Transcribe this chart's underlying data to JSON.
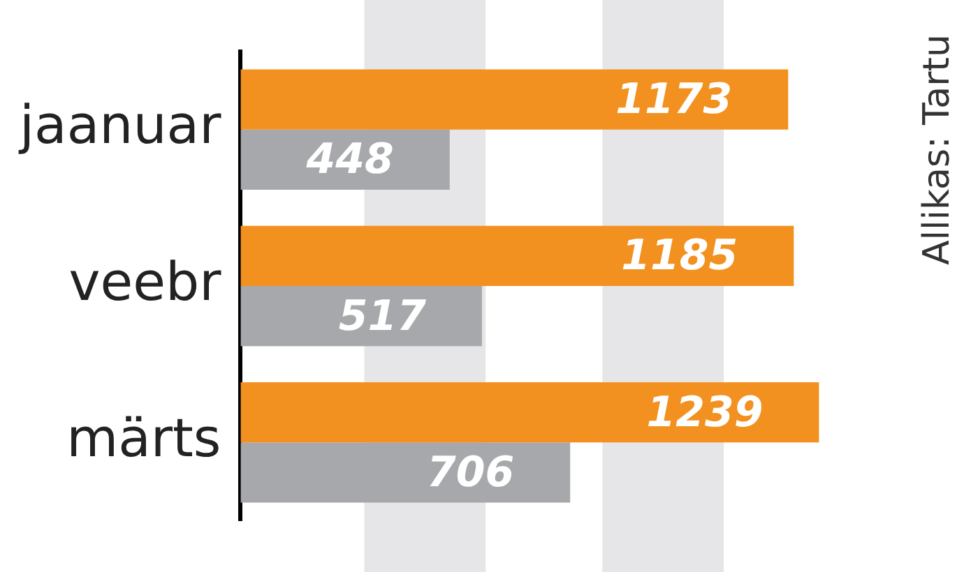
{
  "chart_data": {
    "type": "bar",
    "orientation": "horizontal",
    "categories": [
      "jaanuar",
      "veebr",
      "märts"
    ],
    "series": [
      {
        "color": "#f39120",
        "values": [
          1173,
          1185,
          1239
        ]
      },
      {
        "color": "#a6a8ab",
        "values": [
          448,
          517,
          706
        ]
      }
    ],
    "tick_labels": "y",
    "legend": false,
    "data_labels": true,
    "bands": [
      {
        "axis": "x",
        "from": 265,
        "to": 525,
        "color": "#e6e6e9"
      },
      {
        "axis": "x",
        "from": 775,
        "to": 1035,
        "color": "#e6e6e9"
      }
    ],
    "annotations": [
      "Allikas: Tartu"
    ]
  }
}
